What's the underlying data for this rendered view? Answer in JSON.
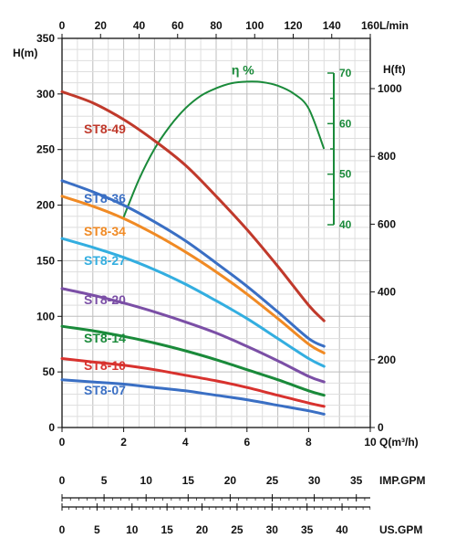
{
  "chart_data": {
    "type": "line",
    "title": "",
    "xlabel": "Q(m³/h)",
    "ylabel": "H(m)",
    "xlim": [
      0,
      10
    ],
    "ylim": [
      0,
      350
    ],
    "grid": true,
    "x_ticks": [
      "0",
      "2",
      "4",
      "6",
      "8",
      "10"
    ],
    "y_ticks": [
      "0",
      "50",
      "100",
      "150",
      "200",
      "250",
      "300",
      "350"
    ],
    "top_axis": {
      "label": "L/min",
      "ticks": [
        "0",
        "20",
        "40",
        "60",
        "80",
        "100",
        "120",
        "140",
        "160"
      ]
    },
    "right_axis": {
      "label": "H(ft)",
      "ticks": [
        "0",
        "200",
        "400",
        "600",
        "800",
        "1000"
      ]
    },
    "efficiency_axis": {
      "label": "η %",
      "ticks": [
        "40",
        "50",
        "60",
        "70"
      ],
      "range": [
        40,
        70
      ],
      "color": "#1a8a3a",
      "curve": {
        "x": [
          2.0,
          2.5,
          3.0,
          3.5,
          4.0,
          4.5,
          5.0,
          5.5,
          6.0,
          6.5,
          7.0,
          7.5,
          8.0,
          8.5
        ],
        "eta": [
          41.5,
          49.0,
          55.0,
          59.5,
          63.0,
          65.5,
          67.0,
          68.0,
          68.3,
          68.2,
          67.5,
          66.0,
          63.0,
          55.0
        ]
      }
    },
    "imp_gpm_axis": {
      "label": "IMP.GPM",
      "ticks": [
        "0",
        "5",
        "10",
        "15",
        "20",
        "25",
        "30",
        "35"
      ]
    },
    "us_gpm_axis": {
      "label": "US.GPM",
      "ticks": [
        "0",
        "5",
        "10",
        "15",
        "20",
        "25",
        "30",
        "35",
        "40"
      ]
    },
    "x": [
      0,
      1,
      2,
      3,
      4,
      5,
      6,
      7,
      8,
      8.5
    ],
    "series": [
      {
        "name": "ST8-49",
        "color": "#c0392b",
        "values": [
          302,
          292,
          277,
          258,
          236,
          208,
          178,
          145,
          110,
          96
        ]
      },
      {
        "name": "ST8-36",
        "color": "#3a6fc4",
        "values": [
          222,
          212,
          200,
          185,
          168,
          148,
          127,
          104,
          80,
          73
        ]
      },
      {
        "name": "ST8-34",
        "color": "#f08a24",
        "values": [
          208,
          199,
          188,
          174,
          158,
          140,
          120,
          98,
          75,
          67
        ]
      },
      {
        "name": "ST8-27",
        "color": "#33aee0",
        "values": [
          170,
          162,
          153,
          142,
          129,
          114,
          98,
          80,
          62,
          55
        ]
      },
      {
        "name": "ST8-20",
        "color": "#7b4fa6",
        "values": [
          125,
          119,
          112,
          104,
          95,
          85,
          73,
          60,
          46,
          41
        ]
      },
      {
        "name": "ST8-14",
        "color": "#1a8a3a",
        "values": [
          91,
          87,
          82,
          76,
          69,
          61,
          52,
          43,
          33,
          29
        ]
      },
      {
        "name": "ST8-10",
        "color": "#d8322e",
        "values": [
          62,
          59,
          56,
          52,
          47,
          42,
          36,
          29,
          22,
          19
        ]
      },
      {
        "name": "ST8-07",
        "color": "#3a6fc4",
        "values": [
          43,
          41,
          39,
          36,
          33,
          29,
          25,
          20,
          15,
          12
        ]
      }
    ]
  }
}
